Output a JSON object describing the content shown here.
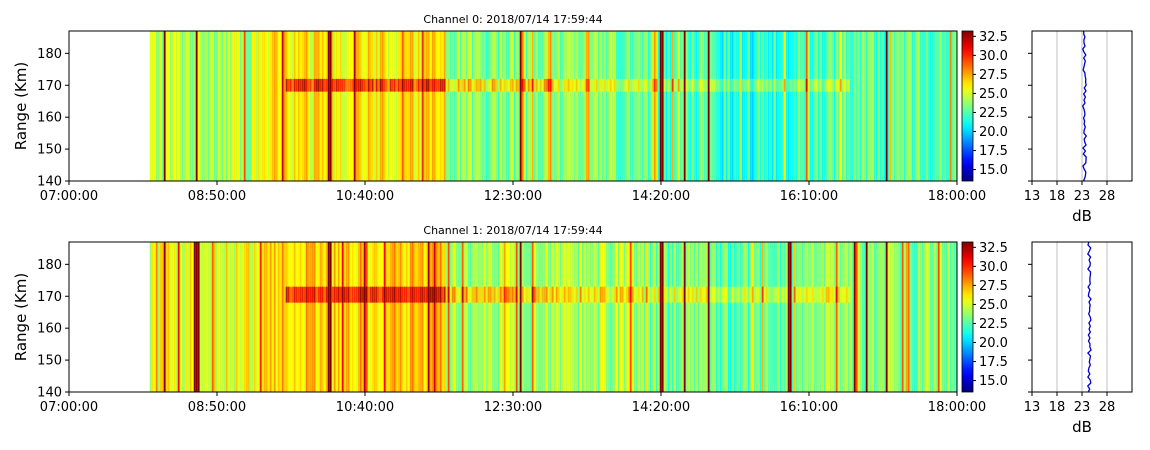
{
  "chart_data": [
    {
      "type": "heatmap",
      "title": "Channel 0: 2018/07/14 17:59:44",
      "ylabel": "Range (Km)",
      "ylim": [
        140,
        187
      ],
      "yticks": [
        140,
        150,
        160,
        170,
        180
      ],
      "xlim": [
        "07:00:00",
        "18:00:00"
      ],
      "xticks": [
        "07:00:00",
        "08:50:00",
        "10:40:00",
        "12:30:00",
        "14:20:00",
        "16:10:00",
        "18:00:00"
      ],
      "data_start": "08:00:00",
      "layer_range_km": [
        168,
        172
      ],
      "dark_stripes": [
        "08:10:00",
        "08:34:00",
        "10:13:00",
        "12:35:00",
        "14:20:00",
        "14:37:00",
        "14:55:00",
        "17:07:00"
      ],
      "colorbar": {
        "colormap": "jet",
        "min": 13.5,
        "max": 33.2,
        "ticks": [
          15.0,
          17.5,
          20.0,
          22.5,
          25.0,
          27.5,
          30.0,
          32.5
        ]
      },
      "profile": {
        "xlabel": "dB",
        "xlim": [
          13,
          33
        ],
        "xticks": [
          13,
          18,
          23,
          28
        ],
        "mean_db": 23.5,
        "color": "#0000cc"
      }
    },
    {
      "type": "heatmap",
      "title": "Channel 1: 2018/07/14 17:59:44",
      "ylabel": "Range (Km)",
      "ylim": [
        140,
        187
      ],
      "yticks": [
        140,
        150,
        160,
        170,
        180
      ],
      "xlim": [
        "07:00:00",
        "18:00:00"
      ],
      "xticks": [
        "07:00:00",
        "08:50:00",
        "10:40:00",
        "12:30:00",
        "14:20:00",
        "16:10:00",
        "18:00:00"
      ],
      "data_start": "08:00:00",
      "layer_range_km": [
        168,
        173
      ],
      "dark_stripes": [
        "08:10:00",
        "08:33:00",
        "08:35:00",
        "10:13:00",
        "12:35:00",
        "14:20:00",
        "14:37:00",
        "14:55:00",
        "15:55:00",
        "16:43:00",
        "16:52:00",
        "17:07:00"
      ],
      "colorbar": {
        "colormap": "jet",
        "min": 13.5,
        "max": 33.2,
        "ticks": [
          15.0,
          17.5,
          20.0,
          22.5,
          25.0,
          27.5,
          30.0,
          32.5
        ]
      },
      "profile": {
        "xlabel": "dB",
        "xlim": [
          13,
          33
        ],
        "xticks": [
          13,
          18,
          23,
          28
        ],
        "mean_db": 24.5,
        "color": "#0000cc"
      }
    }
  ]
}
